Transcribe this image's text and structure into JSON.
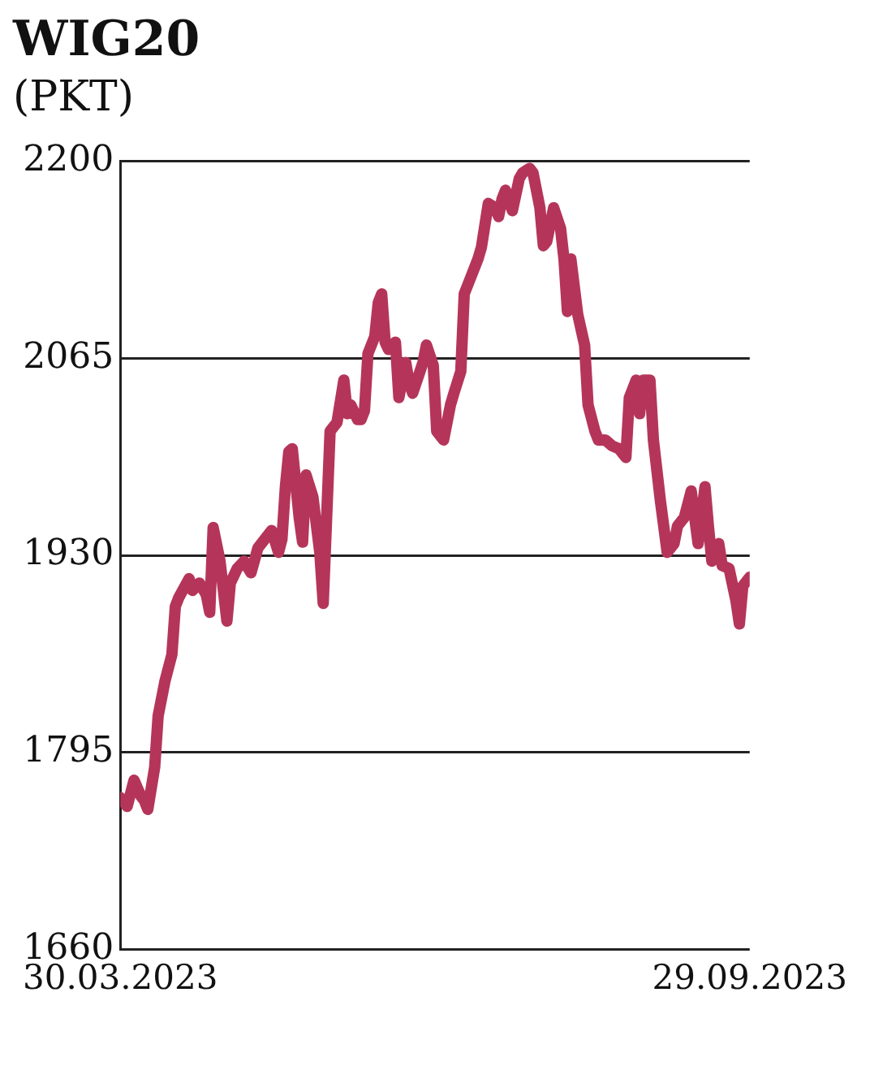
{
  "chart_data": {
    "type": "line",
    "title": "WIG20",
    "subtitle": "(PKT)",
    "x": [
      "2023-03-30",
      "2023-04-01",
      "2023-04-03",
      "2023-04-05",
      "2023-04-06",
      "2023-04-07",
      "2023-04-09",
      "2023-04-10",
      "2023-04-12",
      "2023-04-14",
      "2023-04-15",
      "2023-04-16",
      "2023-04-19",
      "2023-04-20",
      "2023-04-22",
      "2023-04-24",
      "2023-04-25",
      "2023-04-26",
      "2023-04-28",
      "2023-04-30",
      "2023-05-01",
      "2023-05-03",
      "2023-05-05",
      "2023-05-07",
      "2023-05-09",
      "2023-05-10",
      "2023-05-13",
      "2023-05-15",
      "2023-05-16",
      "2023-05-17",
      "2023-05-18",
      "2023-05-19",
      "2023-05-21",
      "2023-05-22",
      "2023-05-23",
      "2023-05-25",
      "2023-05-27",
      "2023-05-28",
      "2023-05-29",
      "2023-05-30",
      "2023-06-01",
      "2023-06-03",
      "2023-06-04",
      "2023-06-05",
      "2023-06-07",
      "2023-06-08",
      "2023-06-09",
      "2023-06-10",
      "2023-06-12",
      "2023-06-13",
      "2023-06-14",
      "2023-06-15",
      "2023-06-16",
      "2023-06-18",
      "2023-06-19",
      "2023-06-21",
      "2023-06-22",
      "2023-06-23",
      "2023-06-25",
      "2023-06-26",
      "2023-06-27",
      "2023-06-29",
      "2023-06-30",
      "2023-07-02",
      "2023-07-04",
      "2023-07-05",
      "2023-07-07",
      "2023-07-08",
      "2023-07-10",
      "2023-07-12",
      "2023-07-13",
      "2023-07-15",
      "2023-07-17",
      "2023-07-18",
      "2023-07-19",
      "2023-07-20",
      "2023-07-22",
      "2023-07-24",
      "2023-07-25",
      "2023-07-27",
      "2023-07-28",
      "2023-07-30",
      "2023-07-31",
      "2023-08-01",
      "2023-08-03",
      "2023-08-05",
      "2023-08-06",
      "2023-08-07",
      "2023-08-08",
      "2023-08-10",
      "2023-08-12",
      "2023-08-13",
      "2023-08-15",
      "2023-08-16",
      "2023-08-18",
      "2023-08-20",
      "2023-08-22",
      "2023-08-24",
      "2023-08-25",
      "2023-08-26",
      "2023-08-27",
      "2023-08-28",
      "2023-08-29",
      "2023-08-31",
      "2023-09-01",
      "2023-09-03",
      "2023-09-05",
      "2023-09-07",
      "2023-09-08",
      "2023-09-10",
      "2023-09-12",
      "2023-09-13",
      "2023-09-14",
      "2023-09-16",
      "2023-09-17",
      "2023-09-18",
      "2023-09-20",
      "2023-09-21",
      "2023-09-23",
      "2023-09-25",
      "2023-09-26",
      "2023-09-27",
      "2023-09-29"
    ],
    "series": [
      {
        "color": "#b5355a",
        "values": [
          1764,
          1758,
          1776,
          1765,
          1762,
          1756,
          1785,
          1820,
          1844,
          1862,
          1895,
          1901,
          1914,
          1906,
          1911,
          1903,
          1891,
          1949,
          1926,
          1885,
          1911,
          1921,
          1926,
          1918,
          1935,
          1938,
          1947,
          1932,
          1941,
          1977,
          2001,
          2003,
          1956,
          1939,
          1985,
          1970,
          1932,
          1897,
          1956,
          2015,
          2021,
          2050,
          2027,
          2033,
          2023,
          2023,
          2029,
          2068,
          2080,
          2103,
          2109,
          2076,
          2071,
          2076,
          2038,
          2062,
          2048,
          2041,
          2055,
          2062,
          2074,
          2060,
          2015,
          2009,
          2033,
          2041,
          2056,
          2109,
          2121,
          2133,
          2141,
          2171,
          2168,
          2162,
          2174,
          2180,
          2166,
          2188,
          2192,
          2195,
          2192,
          2168,
          2142,
          2145,
          2168,
          2154,
          2133,
          2097,
          2133,
          2095,
          2074,
          2033,
          2015,
          2009,
          2009,
          2005,
          2003,
          1997,
          2038,
          2044,
          2050,
          2027,
          2050,
          2050,
          2009,
          1968,
          1932,
          1938,
          1950,
          1956,
          1974,
          1956,
          1938,
          1977,
          1950,
          1926,
          1938,
          1923,
          1921,
          1899,
          1883,
          1909,
          1915
        ]
      }
    ],
    "xlim": [
      "2023-03-30",
      "2023-09-29"
    ],
    "xticks": [
      {
        "value": "2023-03-30",
        "label": "30.03.2023"
      },
      {
        "value": "2023-09-29",
        "label": "29.09.2023"
      }
    ],
    "ylim": [
      1660,
      2200
    ],
    "yticks": [
      1660,
      1795,
      1930,
      2065,
      2200
    ],
    "grid": "y"
  }
}
